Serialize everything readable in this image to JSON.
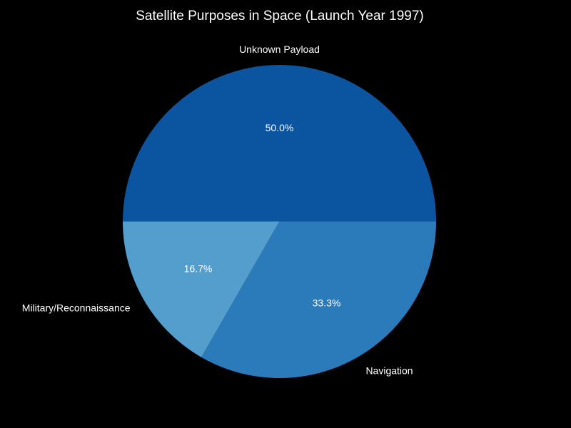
{
  "chart_data": {
    "type": "pie",
    "title": "Satellite Purposes in Space (Launch Year 1997)",
    "categories": [
      "Unknown Payload",
      "Military/Reconnaissance",
      "Navigation"
    ],
    "values": [
      50.0,
      16.7,
      33.3
    ],
    "percent_labels": [
      "50.0%",
      "16.7%",
      "33.3%"
    ],
    "colors": [
      "#0b55a0",
      "#539ecd",
      "#2b7bba"
    ],
    "start_angle": "0 degrees (3 o'clock), counter-clockwise"
  }
}
